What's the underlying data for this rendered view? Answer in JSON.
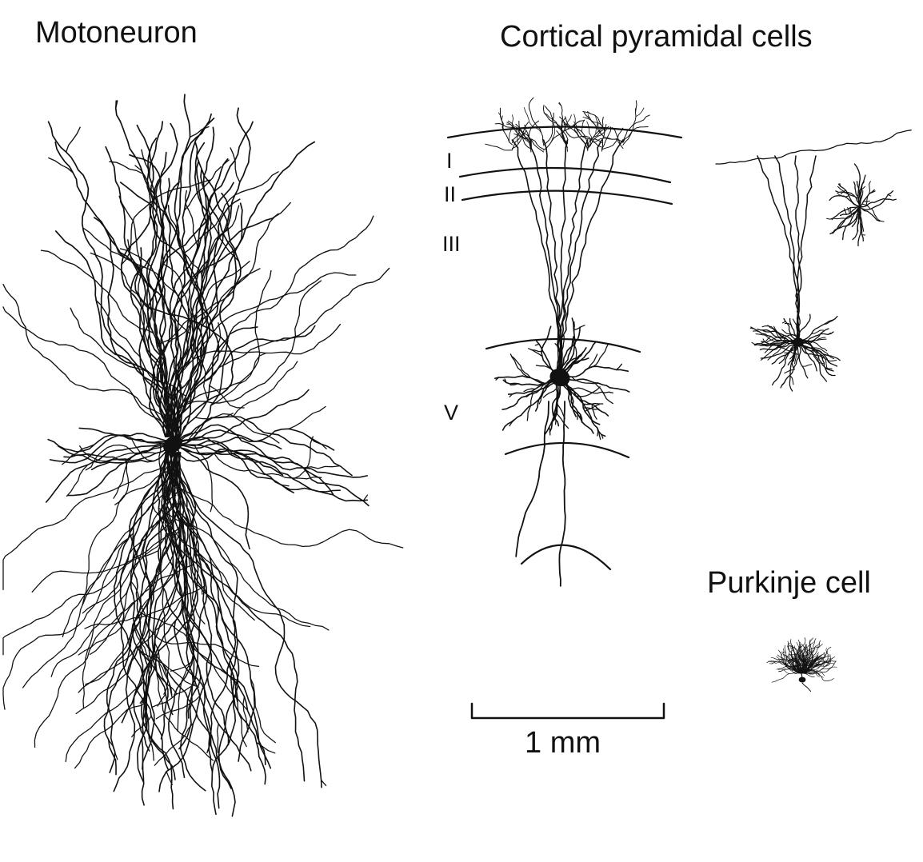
{
  "titles": {
    "motoneuron": "Motoneuron",
    "cortical": "Cortical pyramidal cells",
    "purkinje": "Purkinje cell"
  },
  "layers": {
    "l1": "I",
    "l2": "II",
    "l3": "III",
    "l5": "V"
  },
  "scale_bar": {
    "label": "1 mm"
  },
  "colors": {
    "ink": "#111111",
    "background": "#ffffff"
  }
}
